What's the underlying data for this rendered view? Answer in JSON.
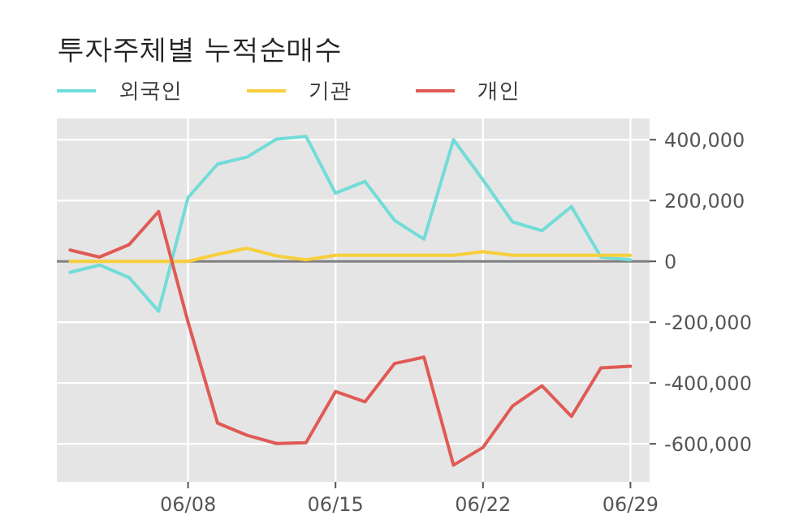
{
  "chart_data": {
    "type": "line",
    "title": "투자주체별 누적순매수",
    "categories": [
      null,
      null,
      null,
      null,
      "06/08",
      null,
      null,
      null,
      null,
      "06/15",
      null,
      null,
      null,
      null,
      "06/22",
      null,
      null,
      null,
      null,
      "06/29"
    ],
    "series": [
      {
        "name": "외국인",
        "color": "#72dcd8",
        "values": [
          -36000,
          -12000,
          -53000,
          -164000,
          210000,
          320000,
          343000,
          402000,
          411000,
          224000,
          263000,
          135000,
          73000,
          400000,
          268000,
          130000,
          101000,
          180000,
          14000,
          5000
        ]
      },
      {
        "name": "기관",
        "color": "#f7cf3b",
        "values": [
          0,
          0,
          0,
          0,
          0,
          23000,
          43000,
          18000,
          5000,
          20000,
          20000,
          20000,
          20000,
          20000,
          32000,
          20000,
          20000,
          20000,
          20000,
          20000
        ]
      },
      {
        "name": "개인",
        "color": "#e05a55",
        "values": [
          37000,
          14000,
          55000,
          164000,
          -200000,
          -532000,
          -572000,
          -599000,
          -596000,
          -428000,
          -462000,
          -336000,
          -315000,
          -670000,
          -612000,
          -476000,
          -409000,
          -510000,
          -350000,
          -345000
        ]
      }
    ],
    "ylim": [
      -725000,
      470000
    ],
    "yticks": [
      {
        "value": -600000,
        "label": "-600,000"
      },
      {
        "value": -400000,
        "label": "-400,000"
      },
      {
        "value": -200000,
        "label": "-200,000"
      },
      0,
      {
        "value": 200000,
        "label": "200,000"
      },
      {
        "value": 400000,
        "label": "400,000"
      }
    ],
    "ref_lines": [
      {
        "axis": "y",
        "value": 0,
        "color": "#7f7f7f"
      }
    ],
    "grid": true,
    "legend": "top left",
    "line_style": "solid",
    "marker": "none"
  }
}
